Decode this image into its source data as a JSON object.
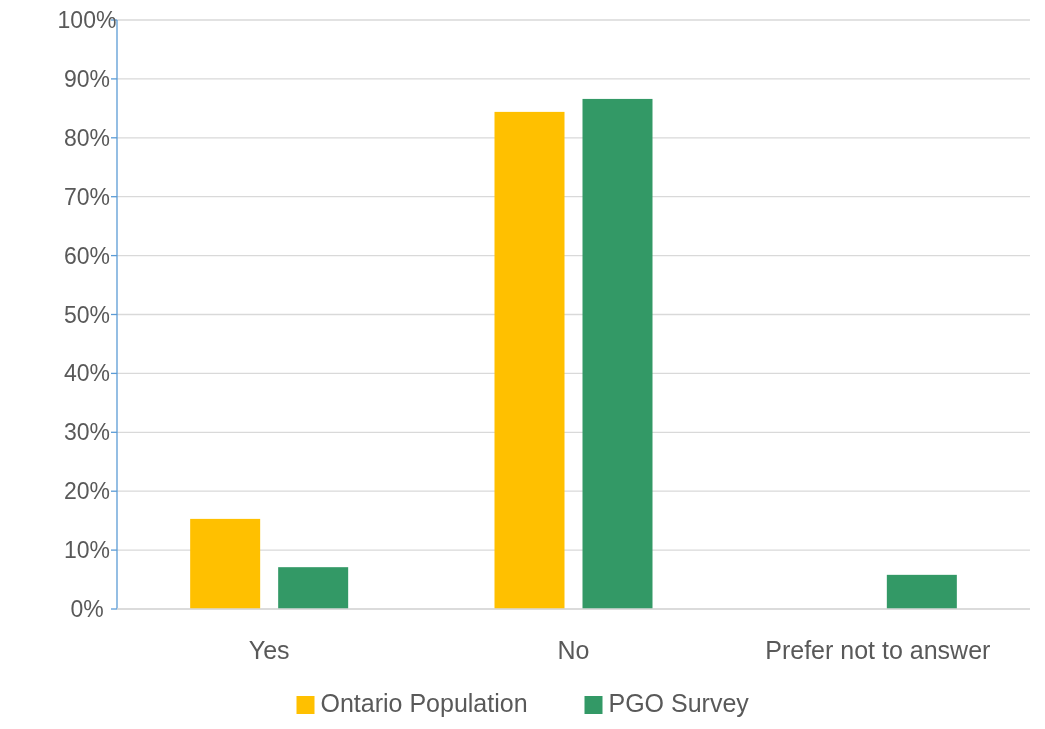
{
  "chart_data": {
    "type": "bar",
    "categories": [
      "Yes",
      "No",
      "Prefer not to answer"
    ],
    "series": [
      {
        "name": "Ontario Population",
        "color": "#ffc000",
        "values": [
          15.3,
          84.4,
          null
        ]
      },
      {
        "name": "PGO Survey",
        "color": "#339966",
        "values": [
          7.1,
          86.6,
          5.8
        ]
      }
    ],
    "ylim": [
      0,
      100
    ],
    "yticks": [
      {
        "value": 0,
        "label": "0%"
      },
      {
        "value": 10,
        "label": "10%"
      },
      {
        "value": 20,
        "label": "20%"
      },
      {
        "value": 30,
        "label": "30%"
      },
      {
        "value": 40,
        "label": "40%"
      },
      {
        "value": 50,
        "label": "50%"
      },
      {
        "value": 60,
        "label": "60%"
      },
      {
        "value": 70,
        "label": "70%"
      },
      {
        "value": 80,
        "label": "80%"
      },
      {
        "value": 90,
        "label": "90%"
      },
      {
        "value": 100,
        "label": "100%"
      }
    ],
    "grid": "y",
    "legend": "bottom"
  }
}
